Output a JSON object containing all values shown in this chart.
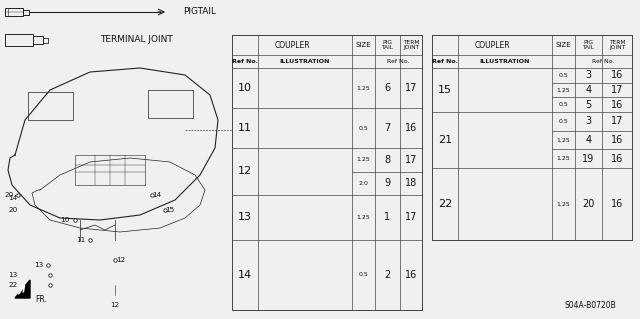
{
  "bg_color": "#f0f0f0",
  "pigtail_label": "PIGTAIL",
  "terminal_joint_label": "TERMINAL JOINT",
  "part_code": "S04A-B0720B",
  "fr_label": "FR.",
  "line_color": "#222222",
  "table_line_color": "#444444",
  "text_color": "#111111",
  "table1": {
    "rows": [
      {
        "ref": "10",
        "size": "1.25",
        "pig": "6",
        "term": "17",
        "double": false
      },
      {
        "ref": "11",
        "size": "0.5",
        "pig": "7",
        "term": "16",
        "double": false
      },
      {
        "ref": "12",
        "size1": "1.25",
        "pig1": "8",
        "term1": "17",
        "size2": "2.0",
        "pig2": "9",
        "term2": "18",
        "double": true
      },
      {
        "ref": "13",
        "size": "1.25",
        "pig": "1",
        "term": "17",
        "double": false
      },
      {
        "ref": "14",
        "size": "0.5",
        "pig": "2",
        "term": "16",
        "double": false
      }
    ]
  },
  "table2": {
    "rows": [
      {
        "ref": "15",
        "sub": [
          {
            "size": "0.5",
            "pig": "3",
            "term": "16"
          },
          {
            "size": "1.25",
            "pig": "4",
            "term": "17"
          },
          {
            "size": "0.5",
            "pig": "5",
            "term": "16"
          }
        ]
      },
      {
        "ref": "21",
        "sub": [
          {
            "size": "0.5",
            "pig": "3",
            "term": "17"
          },
          {
            "size": "1.25",
            "pig": "4",
            "term": "16"
          },
          {
            "size": "1.25",
            "pig": "19",
            "term": "16"
          }
        ]
      },
      {
        "ref": "22",
        "sub": [
          {
            "size": "1.25",
            "pig": "20",
            "term": "16"
          }
        ]
      }
    ]
  }
}
